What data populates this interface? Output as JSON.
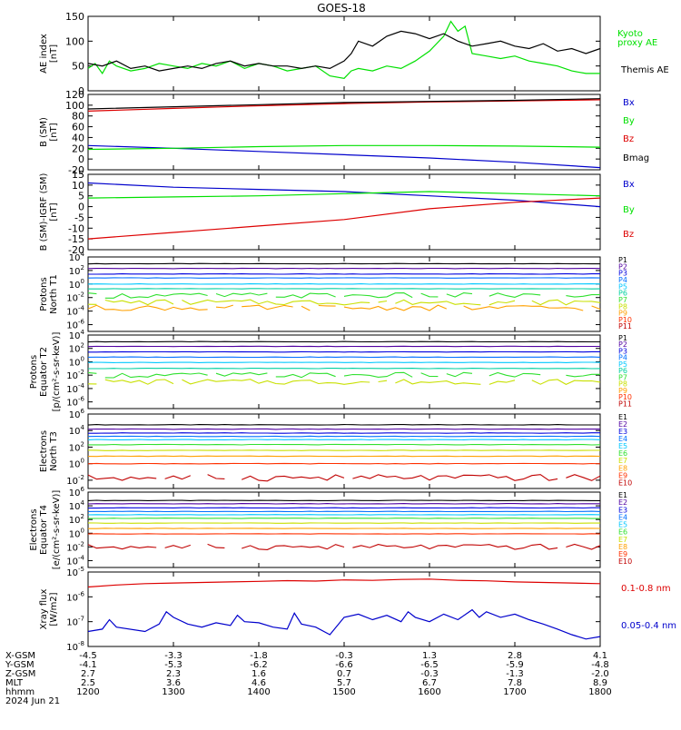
{
  "title": "GOES-18",
  "chart_data": [
    {
      "type": "line",
      "ylabel": [
        "AE index",
        "[nT]"
      ],
      "yscale": "linear",
      "ylim": [
        0,
        150
      ],
      "yticks": [
        0,
        50,
        100,
        150
      ],
      "series": [
        {
          "name": "Kyoto proxy AE",
          "label_lines": [
            "Kyoto",
            "proxy AE"
          ],
          "color": "#00e000",
          "x": [
            1200,
            1205,
            1210,
            1215,
            1220,
            1230,
            1240,
            1250,
            1300,
            1310,
            1320,
            1330,
            1340,
            1350,
            1400,
            1410,
            1420,
            1430,
            1440,
            1450,
            1500,
            1505,
            1510,
            1520,
            1530,
            1540,
            1550,
            1600,
            1610,
            1615,
            1620,
            1625,
            1630,
            1640,
            1650,
            1700,
            1710,
            1720,
            1730,
            1740,
            1750,
            1800
          ],
          "y": [
            45,
            55,
            35,
            60,
            50,
            40,
            45,
            55,
            50,
            45,
            55,
            50,
            60,
            45,
            55,
            50,
            40,
            45,
            50,
            30,
            25,
            40,
            45,
            40,
            50,
            45,
            60,
            80,
            110,
            140,
            120,
            130,
            75,
            70,
            65,
            70,
            60,
            55,
            50,
            40,
            35,
            35
          ]
        },
        {
          "name": "Themis AE",
          "label_lines": [
            "Themis AE"
          ],
          "color": "#000000",
          "x": [
            1200,
            1210,
            1220,
            1230,
            1240,
            1250,
            1300,
            1310,
            1320,
            1330,
            1340,
            1350,
            1400,
            1410,
            1420,
            1430,
            1440,
            1450,
            1500,
            1505,
            1510,
            1520,
            1530,
            1540,
            1550,
            1600,
            1610,
            1620,
            1630,
            1640,
            1650,
            1700,
            1710,
            1720,
            1730,
            1740,
            1750,
            1800
          ],
          "y": [
            55,
            50,
            60,
            45,
            50,
            40,
            45,
            50,
            45,
            55,
            60,
            50,
            55,
            50,
            50,
            45,
            50,
            45,
            60,
            75,
            100,
            90,
            110,
            120,
            115,
            105,
            115,
            100,
            90,
            95,
            100,
            90,
            85,
            95,
            80,
            85,
            75,
            85
          ]
        }
      ]
    },
    {
      "type": "line",
      "ylabel": [
        "B (SM)",
        "[nT]"
      ],
      "yscale": "linear",
      "ylim": [
        -20,
        120
      ],
      "yticks": [
        -20,
        0,
        20,
        40,
        60,
        80,
        100,
        120
      ],
      "series": [
        {
          "name": "Bx",
          "color": "#0000cc",
          "x": [
            1200,
            1300,
            1400,
            1500,
            1600,
            1700,
            1800
          ],
          "y": [
            25,
            20,
            14,
            8,
            2,
            -6,
            -16
          ]
        },
        {
          "name": "By",
          "color": "#00e000",
          "x": [
            1200,
            1300,
            1400,
            1500,
            1600,
            1700,
            1800
          ],
          "y": [
            18,
            20,
            23,
            25,
            25,
            24,
            22
          ]
        },
        {
          "name": "Bz",
          "color": "#dd0000",
          "x": [
            1200,
            1300,
            1400,
            1500,
            1600,
            1700,
            1800
          ],
          "y": [
            89,
            94,
            99,
            103,
            106,
            108,
            110
          ]
        },
        {
          "name": "Bmag",
          "color": "#000000",
          "x": [
            1200,
            1300,
            1400,
            1500,
            1600,
            1700,
            1800
          ],
          "y": [
            93,
            97,
            101,
            105,
            107,
            109,
            112
          ]
        }
      ]
    },
    {
      "type": "line",
      "ylabel": [
        "B (SM)-IGRF (SM)",
        "[nT]"
      ],
      "yscale": "linear",
      "ylim": [
        -20,
        15
      ],
      "yticks": [
        -20,
        -15,
        -10,
        -5,
        0,
        5,
        10,
        15
      ],
      "series": [
        {
          "name": "Bx",
          "color": "#0000cc",
          "x": [
            1200,
            1300,
            1400,
            1500,
            1600,
            1700,
            1800
          ],
          "y": [
            11,
            9,
            8,
            7,
            5,
            3,
            0
          ]
        },
        {
          "name": "By",
          "color": "#00e000",
          "x": [
            1200,
            1300,
            1400,
            1500,
            1600,
            1700,
            1800
          ],
          "y": [
            4,
            4.5,
            5,
            6,
            7,
            6,
            5
          ]
        },
        {
          "name": "Bz",
          "color": "#dd0000",
          "x": [
            1200,
            1300,
            1400,
            1500,
            1600,
            1700,
            1800
          ],
          "y": [
            -15,
            -12,
            -9,
            -6,
            -1,
            2,
            4
          ]
        }
      ]
    },
    {
      "type": "line",
      "ylabel": [
        "Protons",
        "North T1"
      ],
      "yscale": "log",
      "ylim_exp": [
        -7,
        4
      ],
      "ytick_exps": [
        -6,
        -4,
        -2,
        0,
        2,
        4
      ],
      "channels": [
        {
          "name": "P1",
          "color": "#000000",
          "y": 1000
        },
        {
          "name": "P2",
          "color": "#5000a0",
          "y": 200
        },
        {
          "name": "P3",
          "color": "#0000dd",
          "y": 30
        },
        {
          "name": "P4",
          "color": "#0070ff",
          "y": 8
        },
        {
          "name": "P5",
          "color": "#00c8ff",
          "y": 1
        },
        {
          "name": "P6",
          "color": "#00d0a0",
          "y": 0.2
        },
        {
          "name": "P7",
          "color": "#30e030",
          "y": 0.02
        },
        {
          "name": "P8",
          "color": "#c8e000",
          "y": 0.002
        },
        {
          "name": "P9",
          "color": "#ffa000",
          "y": 0.0003
        },
        {
          "name": "P10",
          "color": "#ff3000",
          "y": null
        },
        {
          "name": "P11",
          "color": "#c00000",
          "y": null
        }
      ]
    },
    {
      "type": "line",
      "ylabel": [
        "Protons",
        "Equator T2",
        "[p/(cm²-s-sr-keV)]"
      ],
      "yscale": "log",
      "ylim_exp": [
        -7,
        4
      ],
      "ytick_exps": [
        -6,
        -4,
        -2,
        0,
        2,
        4
      ],
      "channels": [
        {
          "name": "P1",
          "color": "#000000",
          "y": 1000
        },
        {
          "name": "P2",
          "color": "#5000a0",
          "y": 200
        },
        {
          "name": "P3",
          "color": "#0000dd",
          "y": 30
        },
        {
          "name": "P4",
          "color": "#0070ff",
          "y": 5
        },
        {
          "name": "P5",
          "color": "#00c8ff",
          "y": 0.8
        },
        {
          "name": "P6",
          "color": "#00d0a0",
          "y": 0.1
        },
        {
          "name": "P7",
          "color": "#30e030",
          "y": 0.01
        },
        {
          "name": "P8",
          "color": "#c8e000",
          "y": 0.001
        },
        {
          "name": "P9",
          "color": "#ffa000",
          "y": null
        },
        {
          "name": "P10",
          "color": "#ff3000",
          "y": null
        },
        {
          "name": "P11",
          "color": "#c00000",
          "y": null
        }
      ]
    },
    {
      "type": "line",
      "ylabel": [
        "Electrons",
        "North T3"
      ],
      "yscale": "log",
      "ylim_exp": [
        -3,
        6
      ],
      "ytick_exps": [
        -2,
        0,
        2,
        4,
        6
      ],
      "channels": [
        {
          "name": "E1",
          "color": "#000000",
          "y": 50000
        },
        {
          "name": "E2",
          "color": "#5000a0",
          "y": 15000
        },
        {
          "name": "E3",
          "color": "#0000dd",
          "y": 5000
        },
        {
          "name": "E4",
          "color": "#0070ff",
          "y": 2000
        },
        {
          "name": "E5",
          "color": "#00c8ff",
          "y": 800
        },
        {
          "name": "E6",
          "color": "#30e030",
          "y": 200
        },
        {
          "name": "E7",
          "color": "#c8e000",
          "y": 40
        },
        {
          "name": "E8",
          "color": "#ffa000",
          "y": 8
        },
        {
          "name": "E9",
          "color": "#ff3000",
          "y": 1
        },
        {
          "name": "E10",
          "color": "#c00000",
          "y": 0.02
        }
      ]
    },
    {
      "type": "line",
      "ylabel": [
        "Electrons",
        "Equator T4",
        "[e/(cm²-s-sr-keV)]"
      ],
      "yscale": "log",
      "ylim_exp": [
        -5,
        6
      ],
      "ytick_exps": [
        -4,
        -2,
        0,
        2,
        4,
        6
      ],
      "channels": [
        {
          "name": "E1",
          "color": "#000000",
          "y": 60000
        },
        {
          "name": "E2",
          "color": "#5000a0",
          "y": 20000
        },
        {
          "name": "E3",
          "color": "#0000dd",
          "y": 5000
        },
        {
          "name": "E4",
          "color": "#0070ff",
          "y": 1500
        },
        {
          "name": "E5",
          "color": "#00c8ff",
          "y": 500
        },
        {
          "name": "E6",
          "color": "#30e030",
          "y": 150
        },
        {
          "name": "E7",
          "color": "#c8e000",
          "y": 30
        },
        {
          "name": "E8",
          "color": "#ffa000",
          "y": 5
        },
        {
          "name": "E9",
          "color": "#ff3000",
          "y": 0.8
        },
        {
          "name": "E10",
          "color": "#c00000",
          "y": 0.01
        }
      ]
    },
    {
      "type": "line",
      "ylabel": [
        "Xray flux",
        "[W/m2]"
      ],
      "yscale": "log",
      "ylim_exp": [
        -8,
        -5
      ],
      "ytick_exps": [
        -8,
        -7,
        -6,
        -5
      ],
      "series": [
        {
          "name": "0.1-0.8 nm",
          "color": "#dd0000",
          "x": [
            1200,
            1220,
            1240,
            1300,
            1320,
            1340,
            1400,
            1420,
            1440,
            1500,
            1520,
            1540,
            1600,
            1620,
            1640,
            1700,
            1720,
            1740,
            1800
          ],
          "y": [
            2.5e-06,
            3e-06,
            3.4e-06,
            3.6e-06,
            3.8e-06,
            4e-06,
            4.2e-06,
            4.5e-06,
            4.3e-06,
            4.8e-06,
            4.6e-06,
            5e-06,
            5.2e-06,
            4.6e-06,
            4.4e-06,
            4e-06,
            3.8e-06,
            3.6e-06,
            3.4e-06
          ]
        },
        {
          "name": "0.05-0.4 nm",
          "color": "#0000cc",
          "x": [
            1200,
            1210,
            1215,
            1220,
            1240,
            1250,
            1255,
            1300,
            1310,
            1320,
            1330,
            1340,
            1345,
            1350,
            1400,
            1410,
            1420,
            1425,
            1430,
            1440,
            1450,
            1500,
            1510,
            1520,
            1530,
            1540,
            1545,
            1550,
            1600,
            1610,
            1620,
            1630,
            1635,
            1640,
            1650,
            1700,
            1710,
            1720,
            1730,
            1740,
            1750,
            1800
          ],
          "y": [
            4e-08,
            5e-08,
            1.2e-07,
            6e-08,
            4e-08,
            8e-08,
            2.5e-07,
            1.5e-07,
            8e-08,
            6e-08,
            9e-08,
            7e-08,
            1.8e-07,
            1e-07,
            9e-08,
            6e-08,
            5e-08,
            2.2e-07,
            8e-08,
            6e-08,
            3e-08,
            1.5e-07,
            2e-07,
            1.2e-07,
            1.8e-07,
            1e-07,
            2.5e-07,
            1.5e-07,
            1e-07,
            2e-07,
            1.2e-07,
            3e-07,
            1.5e-07,
            2.5e-07,
            1.5e-07,
            2e-07,
            1.2e-07,
            8e-08,
            5e-08,
            3e-08,
            2e-08,
            2.5e-08
          ]
        }
      ]
    }
  ],
  "footer": {
    "row_labels": [
      "X-GSM",
      "Y-GSM",
      "Z-GSM",
      "MLT",
      "hhmm",
      "2024 Jun 21"
    ],
    "columns": [
      {
        "x": 1200,
        "values": [
          "-4.5",
          "-4.1",
          "2.7",
          "2.5",
          "1200"
        ]
      },
      {
        "x": 1300,
        "values": [
          "-3.3",
          "-5.3",
          "2.3",
          "3.6",
          "1300"
        ]
      },
      {
        "x": 1400,
        "values": [
          "-1.8",
          "-6.2",
          "1.6",
          "4.6",
          "1400"
        ]
      },
      {
        "x": 1500,
        "values": [
          "-0.3",
          "-6.6",
          "0.7",
          "5.7",
          "1500"
        ]
      },
      {
        "x": 1600,
        "values": [
          "1.3",
          "-6.5",
          "-0.3",
          "6.7",
          "1600"
        ]
      },
      {
        "x": 1700,
        "values": [
          "2.8",
          "-5.9",
          "-1.3",
          "7.8",
          "1700"
        ]
      },
      {
        "x": 1800,
        "values": [
          "4.1",
          "-4.8",
          "-2.0",
          "8.9",
          "1800"
        ]
      }
    ]
  }
}
